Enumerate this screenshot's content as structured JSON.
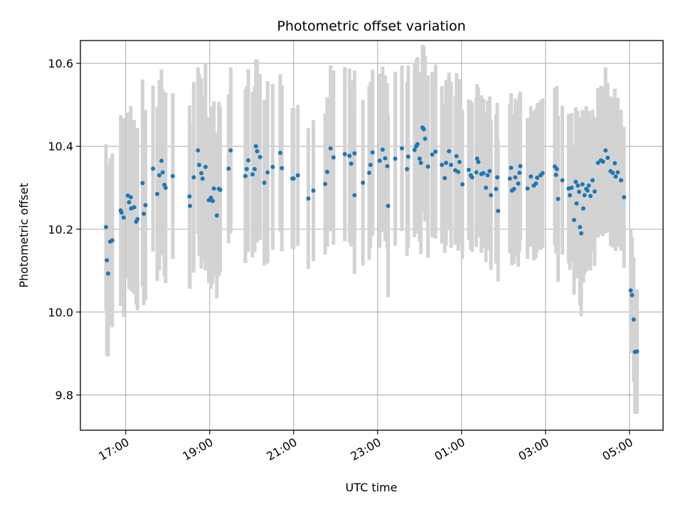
{
  "chart_data": {
    "type": "scatter",
    "title": "Photometric offset variation",
    "xlabel": "UTC time",
    "ylabel": "Photometric offset",
    "x_unit": "hours since 00:00 on the first date (UTC)",
    "xlim": [
      15.92,
      29.8
    ],
    "ylim": [
      9.715,
      10.655
    ],
    "x_ticks": [
      {
        "value": 17,
        "label": "17:00"
      },
      {
        "value": 19,
        "label": "19:00"
      },
      {
        "value": 21,
        "label": "21:00"
      },
      {
        "value": 23,
        "label": "23:00"
      },
      {
        "value": 25,
        "label": "01:00"
      },
      {
        "value": 27,
        "label": "03:00"
      },
      {
        "value": 29,
        "label": "05:00"
      }
    ],
    "y_ticks": [
      {
        "value": 9.8,
        "label": "9.8"
      },
      {
        "value": 10.0,
        "label": "10.0"
      },
      {
        "value": 10.2,
        "label": "10.2"
      },
      {
        "value": 10.4,
        "label": "10.4"
      },
      {
        "value": 10.6,
        "label": "10.6"
      }
    ],
    "grid": true,
    "legend": "none",
    "colors": {
      "points": "#1f77b4",
      "errorbars": "#d3d3d3",
      "grid": "#b0b0b0",
      "axes": "#000000"
    },
    "points": [
      [
        16.53,
        10.205,
        0.2
      ],
      [
        16.55,
        10.125,
        0.23
      ],
      [
        16.58,
        10.093,
        0.2
      ],
      [
        16.63,
        10.17,
        0.2
      ],
      [
        16.68,
        10.173,
        0.21
      ],
      [
        16.88,
        10.245,
        0.23
      ],
      [
        16.9,
        10.24,
        0.22
      ],
      [
        16.95,
        10.228,
        0.24
      ],
      [
        17.05,
        10.281,
        0.2
      ],
      [
        17.08,
        10.265,
        0.21
      ],
      [
        17.12,
        10.277,
        0.22
      ],
      [
        17.13,
        10.25,
        0.2
      ],
      [
        17.2,
        10.253,
        0.21
      ],
      [
        17.25,
        10.218,
        0.2
      ],
      [
        17.28,
        10.224,
        0.22
      ],
      [
        17.4,
        10.311,
        0.25
      ],
      [
        17.43,
        10.237,
        0.22
      ],
      [
        17.47,
        10.258,
        0.23
      ],
      [
        17.65,
        10.346,
        0.2
      ],
      [
        17.75,
        10.285,
        0.21
      ],
      [
        17.8,
        10.33,
        0.23
      ],
      [
        17.85,
        10.365,
        0.22
      ],
      [
        17.88,
        10.337,
        0.2
      ],
      [
        17.92,
        10.307,
        0.22
      ],
      [
        17.95,
        10.3,
        0.23
      ],
      [
        18.12,
        10.328,
        0.2
      ],
      [
        18.52,
        10.279,
        0.22
      ],
      [
        18.53,
        10.256,
        0.2
      ],
      [
        18.62,
        10.325,
        0.23
      ],
      [
        18.72,
        10.39,
        0.2
      ],
      [
        18.75,
        10.355,
        0.22
      ],
      [
        18.8,
        10.335,
        0.23
      ],
      [
        18.83,
        10.322,
        0.2
      ],
      [
        18.9,
        10.35,
        0.25
      ],
      [
        18.98,
        10.27,
        0.2
      ],
      [
        19.03,
        10.276,
        0.22
      ],
      [
        19.07,
        10.268,
        0.2
      ],
      [
        19.1,
        10.298,
        0.21
      ],
      [
        19.17,
        10.233,
        0.2
      ],
      [
        19.22,
        10.297,
        0.21
      ],
      [
        19.25,
        10.295,
        0.2
      ],
      [
        19.45,
        10.346,
        0.18
      ],
      [
        19.5,
        10.39,
        0.2
      ],
      [
        19.85,
        10.328,
        0.21
      ],
      [
        19.88,
        10.345,
        0.2
      ],
      [
        19.92,
        10.366,
        0.22
      ],
      [
        20.02,
        10.332,
        0.2
      ],
      [
        20.07,
        10.345,
        0.2
      ],
      [
        20.1,
        10.4,
        0.21
      ],
      [
        20.13,
        10.388,
        0.22
      ],
      [
        20.2,
        10.374,
        0.2
      ],
      [
        20.3,
        10.312,
        0.2
      ],
      [
        20.38,
        10.337,
        0.22
      ],
      [
        20.5,
        10.35,
        0.2
      ],
      [
        20.68,
        10.384,
        0.19
      ],
      [
        20.72,
        10.347,
        0.2
      ],
      [
        20.97,
        10.322,
        0.17
      ],
      [
        21.0,
        10.322,
        0.17
      ],
      [
        21.1,
        10.33,
        0.17
      ],
      [
        21.35,
        10.274,
        0.17
      ],
      [
        21.47,
        10.293,
        0.17
      ],
      [
        21.75,
        10.309,
        0.17
      ],
      [
        21.8,
        10.338,
        0.18
      ],
      [
        21.88,
        10.395,
        0.2
      ],
      [
        21.95,
        10.373,
        0.21
      ],
      [
        22.22,
        10.381,
        0.21
      ],
      [
        22.33,
        10.377,
        0.21
      ],
      [
        22.37,
        10.358,
        0.2
      ],
      [
        22.45,
        10.383,
        0.2
      ],
      [
        22.45,
        10.282,
        0.19
      ],
      [
        22.65,
        10.312,
        0.2
      ],
      [
        22.8,
        10.336,
        0.21
      ],
      [
        22.83,
        10.355,
        0.2
      ],
      [
        22.88,
        10.385,
        0.2
      ],
      [
        23.05,
        10.365,
        0.21
      ],
      [
        23.12,
        10.392,
        0.2
      ],
      [
        23.18,
        10.371,
        0.2
      ],
      [
        23.23,
        10.352,
        0.2
      ],
      [
        23.25,
        10.256,
        0.22
      ],
      [
        23.42,
        10.37,
        0.21
      ],
      [
        23.58,
        10.395,
        0.2
      ],
      [
        23.7,
        10.345,
        0.21
      ],
      [
        23.73,
        10.375,
        0.22
      ],
      [
        23.88,
        10.391,
        0.21
      ],
      [
        23.92,
        10.4,
        0.21
      ],
      [
        23.95,
        10.405,
        0.21
      ],
      [
        24.0,
        10.37,
        0.2
      ],
      [
        24.03,
        10.36,
        0.22
      ],
      [
        24.07,
        10.445,
        0.2
      ],
      [
        24.1,
        10.441,
        0.2
      ],
      [
        24.13,
        10.418,
        0.2
      ],
      [
        24.2,
        10.351,
        0.22
      ],
      [
        24.3,
        10.38,
        0.2
      ],
      [
        24.38,
        10.387,
        0.21
      ],
      [
        24.53,
        10.355,
        0.19
      ],
      [
        24.6,
        10.323,
        0.18
      ],
      [
        24.63,
        10.36,
        0.2
      ],
      [
        24.7,
        10.388,
        0.19
      ],
      [
        24.75,
        10.355,
        0.2
      ],
      [
        24.85,
        10.342,
        0.18
      ],
      [
        24.88,
        10.376,
        0.2
      ],
      [
        24.92,
        10.338,
        0.19
      ],
      [
        24.95,
        10.362,
        0.2
      ],
      [
        25.02,
        10.308,
        0.18
      ],
      [
        25.17,
        10.343,
        0.17
      ],
      [
        25.22,
        10.33,
        0.18
      ],
      [
        25.25,
        10.325,
        0.18
      ],
      [
        25.35,
        10.337,
        0.18
      ],
      [
        25.37,
        10.37,
        0.18
      ],
      [
        25.4,
        10.362,
        0.18
      ],
      [
        25.47,
        10.333,
        0.19
      ],
      [
        25.52,
        10.335,
        0.18
      ],
      [
        25.58,
        10.3,
        0.18
      ],
      [
        25.62,
        10.33,
        0.18
      ],
      [
        25.67,
        10.34,
        0.18
      ],
      [
        25.7,
        10.282,
        0.18
      ],
      [
        25.82,
        10.297,
        0.18
      ],
      [
        25.85,
        10.325,
        0.18
      ],
      [
        25.87,
        10.244,
        0.17
      ],
      [
        26.15,
        10.322,
        0.18
      ],
      [
        26.18,
        10.348,
        0.18
      ],
      [
        26.2,
        10.293,
        0.18
      ],
      [
        26.25,
        10.297,
        0.18
      ],
      [
        26.28,
        10.325,
        0.19
      ],
      [
        26.35,
        10.31,
        0.2
      ],
      [
        26.38,
        10.336,
        0.19
      ],
      [
        26.4,
        10.352,
        0.18
      ],
      [
        26.57,
        10.298,
        0.17
      ],
      [
        26.65,
        10.327,
        0.17
      ],
      [
        26.72,
        10.305,
        0.18
      ],
      [
        26.77,
        10.31,
        0.18
      ],
      [
        26.8,
        10.324,
        0.18
      ],
      [
        26.88,
        10.33,
        0.18
      ],
      [
        26.93,
        10.335,
        0.18
      ],
      [
        27.22,
        10.351,
        0.19
      ],
      [
        27.25,
        10.331,
        0.19
      ],
      [
        27.27,
        10.345,
        0.2
      ],
      [
        27.3,
        10.273,
        0.2
      ],
      [
        27.4,
        10.318,
        0.18
      ],
      [
        27.55,
        10.298,
        0.18
      ],
      [
        27.58,
        10.282,
        0.18
      ],
      [
        27.62,
        10.3,
        0.18
      ],
      [
        27.68,
        10.222,
        0.18
      ],
      [
        27.72,
        10.314,
        0.18
      ],
      [
        27.74,
        10.262,
        0.18
      ],
      [
        27.77,
        10.305,
        0.18
      ],
      [
        27.8,
        10.29,
        0.18
      ],
      [
        27.82,
        10.205,
        0.19
      ],
      [
        27.85,
        10.19,
        0.2
      ],
      [
        27.88,
        10.308,
        0.18
      ],
      [
        27.9,
        10.25,
        0.18
      ],
      [
        27.93,
        10.282,
        0.19
      ],
      [
        27.97,
        10.297,
        0.2
      ],
      [
        28.0,
        10.293,
        0.19
      ],
      [
        28.03,
        10.305,
        0.18
      ],
      [
        28.07,
        10.28,
        0.18
      ],
      [
        28.12,
        10.318,
        0.17
      ],
      [
        28.17,
        10.291,
        0.18
      ],
      [
        28.25,
        10.36,
        0.18
      ],
      [
        28.32,
        10.366,
        0.18
      ],
      [
        28.37,
        10.363,
        0.18
      ],
      [
        28.43,
        10.39,
        0.2
      ],
      [
        28.48,
        10.372,
        0.18
      ],
      [
        28.55,
        10.34,
        0.18
      ],
      [
        28.6,
        10.336,
        0.18
      ],
      [
        28.65,
        10.359,
        0.18
      ],
      [
        28.67,
        10.327,
        0.18
      ],
      [
        28.72,
        10.337,
        0.18
      ],
      [
        28.8,
        10.318,
        0.17
      ],
      [
        28.87,
        10.277,
        0.17
      ],
      [
        29.03,
        10.052,
        0.15
      ],
      [
        29.06,
        10.041,
        0.14
      ],
      [
        29.1,
        9.982,
        0.15
      ],
      [
        29.13,
        9.904,
        0.15
      ],
      [
        29.18,
        9.905,
        0.15
      ]
    ]
  }
}
